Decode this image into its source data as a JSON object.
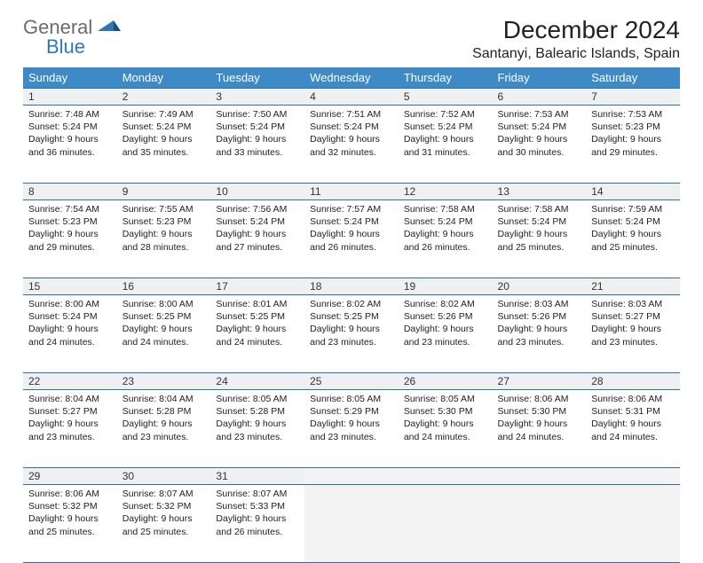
{
  "brand": {
    "part1": "General",
    "part2": "Blue"
  },
  "title": "December 2024",
  "location": "Santanyi, Balearic Islands, Spain",
  "weekdays": [
    "Sunday",
    "Monday",
    "Tuesday",
    "Wednesday",
    "Thursday",
    "Friday",
    "Saturday"
  ],
  "colors": {
    "header_bg": "#3d8ac7",
    "header_text": "#ffffff",
    "rule": "#2f6fa3",
    "daynum_bg": "#eef0f1",
    "empty_bg": "#f3f3f3",
    "brand_gray": "#6b6b6b",
    "brand_blue": "#2f78b8"
  },
  "weeks": [
    [
      {
        "n": "1",
        "sunrise": "7:48 AM",
        "sunset": "5:24 PM",
        "dl": "9 hours and 36 minutes."
      },
      {
        "n": "2",
        "sunrise": "7:49 AM",
        "sunset": "5:24 PM",
        "dl": "9 hours and 35 minutes."
      },
      {
        "n": "3",
        "sunrise": "7:50 AM",
        "sunset": "5:24 PM",
        "dl": "9 hours and 33 minutes."
      },
      {
        "n": "4",
        "sunrise": "7:51 AM",
        "sunset": "5:24 PM",
        "dl": "9 hours and 32 minutes."
      },
      {
        "n": "5",
        "sunrise": "7:52 AM",
        "sunset": "5:24 PM",
        "dl": "9 hours and 31 minutes."
      },
      {
        "n": "6",
        "sunrise": "7:53 AM",
        "sunset": "5:24 PM",
        "dl": "9 hours and 30 minutes."
      },
      {
        "n": "7",
        "sunrise": "7:53 AM",
        "sunset": "5:23 PM",
        "dl": "9 hours and 29 minutes."
      }
    ],
    [
      {
        "n": "8",
        "sunrise": "7:54 AM",
        "sunset": "5:23 PM",
        "dl": "9 hours and 29 minutes."
      },
      {
        "n": "9",
        "sunrise": "7:55 AM",
        "sunset": "5:23 PM",
        "dl": "9 hours and 28 minutes."
      },
      {
        "n": "10",
        "sunrise": "7:56 AM",
        "sunset": "5:24 PM",
        "dl": "9 hours and 27 minutes."
      },
      {
        "n": "11",
        "sunrise": "7:57 AM",
        "sunset": "5:24 PM",
        "dl": "9 hours and 26 minutes."
      },
      {
        "n": "12",
        "sunrise": "7:58 AM",
        "sunset": "5:24 PM",
        "dl": "9 hours and 26 minutes."
      },
      {
        "n": "13",
        "sunrise": "7:58 AM",
        "sunset": "5:24 PM",
        "dl": "9 hours and 25 minutes."
      },
      {
        "n": "14",
        "sunrise": "7:59 AM",
        "sunset": "5:24 PM",
        "dl": "9 hours and 25 minutes."
      }
    ],
    [
      {
        "n": "15",
        "sunrise": "8:00 AM",
        "sunset": "5:24 PM",
        "dl": "9 hours and 24 minutes."
      },
      {
        "n": "16",
        "sunrise": "8:00 AM",
        "sunset": "5:25 PM",
        "dl": "9 hours and 24 minutes."
      },
      {
        "n": "17",
        "sunrise": "8:01 AM",
        "sunset": "5:25 PM",
        "dl": "9 hours and 24 minutes."
      },
      {
        "n": "18",
        "sunrise": "8:02 AM",
        "sunset": "5:25 PM",
        "dl": "9 hours and 23 minutes."
      },
      {
        "n": "19",
        "sunrise": "8:02 AM",
        "sunset": "5:26 PM",
        "dl": "9 hours and 23 minutes."
      },
      {
        "n": "20",
        "sunrise": "8:03 AM",
        "sunset": "5:26 PM",
        "dl": "9 hours and 23 minutes."
      },
      {
        "n": "21",
        "sunrise": "8:03 AM",
        "sunset": "5:27 PM",
        "dl": "9 hours and 23 minutes."
      }
    ],
    [
      {
        "n": "22",
        "sunrise": "8:04 AM",
        "sunset": "5:27 PM",
        "dl": "9 hours and 23 minutes."
      },
      {
        "n": "23",
        "sunrise": "8:04 AM",
        "sunset": "5:28 PM",
        "dl": "9 hours and 23 minutes."
      },
      {
        "n": "24",
        "sunrise": "8:05 AM",
        "sunset": "5:28 PM",
        "dl": "9 hours and 23 minutes."
      },
      {
        "n": "25",
        "sunrise": "8:05 AM",
        "sunset": "5:29 PM",
        "dl": "9 hours and 23 minutes."
      },
      {
        "n": "26",
        "sunrise": "8:05 AM",
        "sunset": "5:30 PM",
        "dl": "9 hours and 24 minutes."
      },
      {
        "n": "27",
        "sunrise": "8:06 AM",
        "sunset": "5:30 PM",
        "dl": "9 hours and 24 minutes."
      },
      {
        "n": "28",
        "sunrise": "8:06 AM",
        "sunset": "5:31 PM",
        "dl": "9 hours and 24 minutes."
      }
    ],
    [
      {
        "n": "29",
        "sunrise": "8:06 AM",
        "sunset": "5:32 PM",
        "dl": "9 hours and 25 minutes."
      },
      {
        "n": "30",
        "sunrise": "8:07 AM",
        "sunset": "5:32 PM",
        "dl": "9 hours and 25 minutes."
      },
      {
        "n": "31",
        "sunrise": "8:07 AM",
        "sunset": "5:33 PM",
        "dl": "9 hours and 26 minutes."
      },
      null,
      null,
      null,
      null
    ]
  ],
  "labels": {
    "sunrise": "Sunrise:",
    "sunset": "Sunset:",
    "daylight": "Daylight:"
  }
}
